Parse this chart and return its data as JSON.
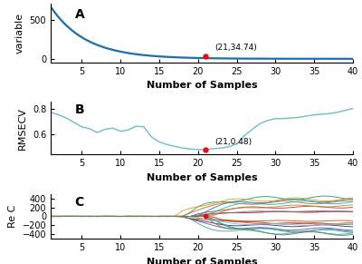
{
  "panel_A": {
    "label": "A",
    "ylabel": "variable",
    "xlabel": "Number of Samples",
    "curve_color": "#1a6faf",
    "marker_x": 21,
    "marker_y": 34.74,
    "marker_label": "(21,34.74)",
    "marker_color": "red",
    "ylim": [
      -40,
      700
    ],
    "yticks": [
      0,
      500
    ],
    "xticks": [
      5,
      10,
      15,
      20,
      25,
      30,
      35,
      40
    ]
  },
  "panel_B": {
    "label": "B",
    "ylabel": "RMSECV",
    "xlabel": "Number of Samples",
    "marker_x": 21,
    "marker_y": 0.48,
    "marker_label": "(21,0.48)",
    "marker_color": "red",
    "curve_color": "#6bbfcc",
    "ylim": [
      0.44,
      0.86
    ],
    "yticks": [
      0.6,
      0.8
    ],
    "xticks": [
      5,
      10,
      15,
      20,
      25,
      30,
      35,
      40
    ]
  },
  "panel_C": {
    "label": "C",
    "ylabel": "Re C",
    "xlabel": "Number of Samples",
    "ylim": [
      -500,
      500
    ],
    "yticks": [
      -400,
      -200,
      0,
      200,
      400
    ],
    "xticks": [
      5,
      10,
      15,
      20,
      25,
      30,
      35,
      40
    ],
    "num_lines": 20,
    "marker_x": 21,
    "marker_color": "red"
  },
  "background_color": "#ffffff",
  "font_size_label": 8,
  "font_size_tick": 7,
  "font_size_annot": 6.5,
  "label_fontsize": 10
}
